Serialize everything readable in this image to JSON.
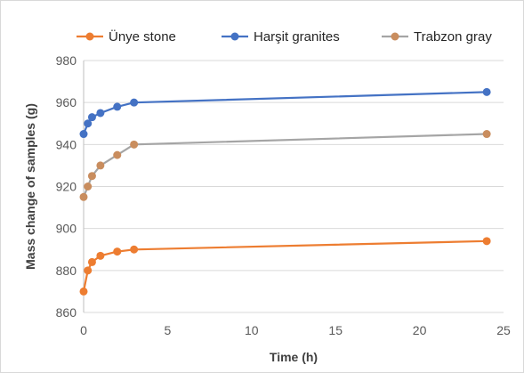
{
  "chart_data": {
    "type": "line",
    "title": "",
    "xlabel": "Time (h)",
    "ylabel": "Mass change of samples (g)",
    "xlim": [
      0,
      25
    ],
    "ylim": [
      860,
      980
    ],
    "xticks": [
      0,
      5,
      10,
      15,
      20,
      25
    ],
    "yticks": [
      860,
      880,
      900,
      920,
      940,
      960,
      980
    ],
    "grid": "horizontal",
    "legend_position": "top",
    "series": [
      {
        "name": "Ünye stone",
        "color": "#ED7D31",
        "points": [
          [
            0,
            870
          ],
          [
            0.25,
            880
          ],
          [
            0.5,
            884
          ],
          [
            1,
            887
          ],
          [
            2,
            889
          ],
          [
            3,
            890
          ],
          [
            24,
            894
          ]
        ]
      },
      {
        "name": "Harşit granites",
        "color": "#4472C4",
        "points": [
          [
            0,
            945
          ],
          [
            0.25,
            950
          ],
          [
            0.5,
            953
          ],
          [
            1,
            955
          ],
          [
            2,
            958
          ],
          [
            3,
            960
          ],
          [
            24,
            965
          ]
        ]
      },
      {
        "name": "Trabzon gray",
        "color": "#A5A5A5",
        "marker_color": "#C98D5E",
        "points": [
          [
            0,
            915
          ],
          [
            0.25,
            920
          ],
          [
            0.5,
            925
          ],
          [
            1,
            930
          ],
          [
            2,
            935
          ],
          [
            3,
            940
          ],
          [
            24,
            945
          ]
        ]
      }
    ]
  }
}
